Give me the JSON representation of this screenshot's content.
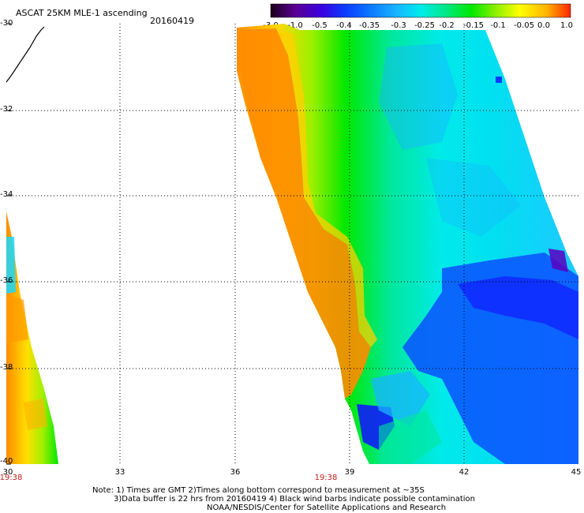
{
  "header": {
    "title": "ASCAT 25KM MLE-1 ascending",
    "date": "20160419"
  },
  "colorbar": {
    "labels": [
      "-3.0",
      "-1.0",
      "-0.5",
      "-0.4",
      "-0.35",
      "-0.3",
      "-0.25",
      "-0.2",
      "-0.15",
      "-0.1",
      "-0.05",
      "0.0",
      "1.0"
    ],
    "colors": [
      "#2a0030",
      "#6e00b0",
      "#2a00e0",
      "#0a3cff",
      "#0a78ff",
      "#18b4ff",
      "#00ecec",
      "#00e88c",
      "#00e800",
      "#8cf000",
      "#ffff00",
      "#ffb400",
      "#ff3c00"
    ]
  },
  "axes": {
    "y_labels": [
      "-30",
      "-32",
      "-34",
      "-36",
      "-38",
      "-40"
    ],
    "x_labels": [
      "30",
      "33",
      "36",
      "39",
      "42",
      "45"
    ]
  },
  "times": [
    "19:38",
    "19:38"
  ],
  "notes": [
    "Note: 1) Times are GMT 2)Times along bottom correspond to measurement at ~35S",
    "3)Data buffer is 22 hrs from 20160419 4) Black wind barbs indicate possible contamination",
    "NOAA/NESDIS/Center for Satellite Applications and Research"
  ]
}
